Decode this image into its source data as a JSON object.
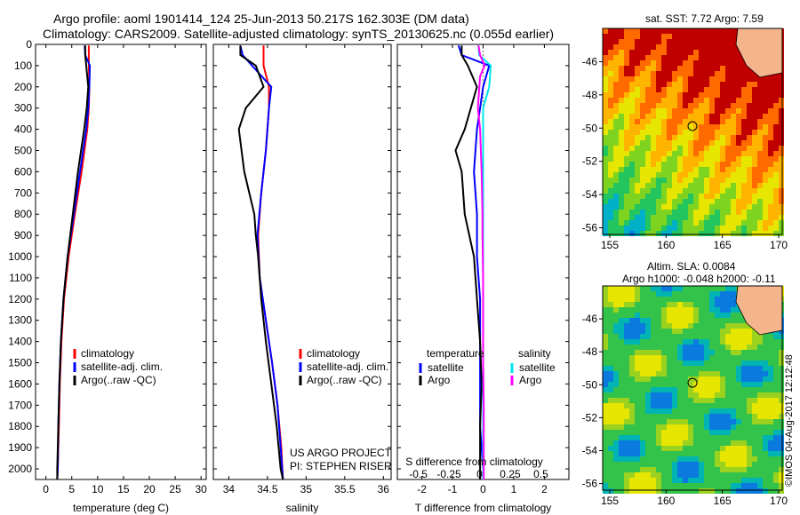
{
  "header": {
    "line1": "Argo profile: aoml 1901414_124 25-Jun-2013 50.217S 162.303E (DM data)",
    "line2": "Climatology: CARS2009. Satellite-adjusted climatology: synTS_20130625.nc (0.055d earlier)"
  },
  "colors": {
    "climatology": "#ff0000",
    "satellite": "#0000ff",
    "argo": "#000000",
    "cyan": "#00e5ee",
    "magenta": "#ff00ff"
  },
  "panels": {
    "temperature": {
      "xlabel": "temperature (deg C)",
      "xticks": [
        "0",
        "5",
        "10",
        "15",
        "20",
        "25",
        "30"
      ]
    },
    "salinity": {
      "xlabel": "salinity",
      "xticks": [
        "34",
        "34.5",
        "35",
        "35.5",
        "36"
      ]
    },
    "difference": {
      "xlabel": "T difference from climatology",
      "xticks": [
        "-2",
        "-1",
        "0",
        "1",
        "2"
      ],
      "s_label": "S difference from climatology",
      "s_ticks": [
        "-0.5",
        "-0.25",
        "0",
        "0.25",
        "0.5"
      ]
    },
    "legend_t": [
      "climatology",
      "satellite-adj. clim.",
      "Argo(..raw -QC)"
    ],
    "legend_s": [
      "climatology",
      "satellite-adj. clim.",
      "Argo(..raw -QC)"
    ],
    "legend_diff": {
      "temp_head": "temperature",
      "sal_head": "salinity",
      "sat": "satellite",
      "argo": "Argo"
    },
    "credit": [
      "US ARGO PROJECT",
      "PI: STEPHEN RISER"
    ]
  },
  "depth_ticks": [
    "0",
    "100",
    "200",
    "300",
    "400",
    "500",
    "600",
    "700",
    "800",
    "900",
    "1000",
    "1100",
    "1200",
    "1300",
    "1400",
    "1500",
    "1600",
    "1700",
    "1800",
    "1900",
    "2000"
  ],
  "maps": {
    "sst_title": "sat. SST: 7.72 Argo: 7.59",
    "sla_title1": "Altim. SLA: 0.0084",
    "sla_title2": "Argo h1000: -0.048 h2000: -0.11",
    "lat_ticks": [
      "-46",
      "-48",
      "-50",
      "-52",
      "-54",
      "-56"
    ],
    "lon_ticks": [
      "155",
      "160",
      "165",
      "170"
    ],
    "stamp": "©IMOS 04-Aug-2017 12:12:48"
  },
  "chart_data": [
    {
      "type": "line",
      "title": "",
      "xlabel": "temperature (deg C)",
      "ylabel": "",
      "xlim": [
        -2,
        31
      ],
      "ylim": [
        2050,
        0
      ],
      "series": [
        {
          "name": "climatology",
          "color": "#ff0000",
          "depth": [
            5,
            50,
            100,
            200,
            300,
            400,
            600,
            800,
            1000,
            1200,
            1400,
            1600,
            1800,
            2000,
            2050
          ],
          "values": [
            8.3,
            8.3,
            8.3,
            8.4,
            8.3,
            8.0,
            6.9,
            5.6,
            4.4,
            3.5,
            3.0,
            2.7,
            2.5,
            2.3,
            2.2
          ]
        },
        {
          "name": "satellite-adj. clim.",
          "color": "#0000ff",
          "depth": [
            5,
            50,
            100,
            200,
            300,
            400,
            600,
            800,
            1000,
            1200,
            1400,
            1600,
            1800,
            2000,
            2050
          ],
          "values": [
            7.5,
            7.6,
            8.5,
            8.4,
            8.2,
            7.8,
            6.6,
            5.4,
            4.2,
            3.4,
            2.9,
            2.6,
            2.4,
            2.3,
            2.2
          ]
        },
        {
          "name": "Argo(..raw -QC)",
          "color": "#000000",
          "depth": [
            5,
            50,
            100,
            200,
            300,
            400,
            500,
            600,
            800,
            1000,
            1200,
            1400,
            1600,
            1800,
            2000,
            2050
          ],
          "values": [
            7.6,
            7.6,
            7.8,
            8.2,
            7.9,
            7.4,
            6.8,
            6.2,
            5.2,
            4.2,
            3.4,
            2.9,
            2.6,
            2.4,
            2.2,
            2.2
          ]
        }
      ]
    },
    {
      "type": "line",
      "title": "",
      "xlabel": "salinity",
      "ylabel": "",
      "xlim": [
        33.8,
        36.1
      ],
      "ylim": [
        2050,
        0
      ],
      "series": [
        {
          "name": "climatology",
          "color": "#ff0000",
          "depth": [
            5,
            100,
            200,
            300,
            500,
            700,
            900,
            1100,
            1300,
            1500,
            1700,
            1900,
            2050
          ],
          "values": [
            34.45,
            34.45,
            34.52,
            34.52,
            34.48,
            34.42,
            34.38,
            34.4,
            34.48,
            34.56,
            34.63,
            34.68,
            34.7
          ]
        },
        {
          "name": "satellite-adj. clim.",
          "color": "#0000ff",
          "depth": [
            5,
            50,
            100,
            200,
            300,
            500,
            700,
            900,
            1100,
            1300,
            1500,
            1700,
            1900,
            2050
          ],
          "values": [
            34.15,
            34.18,
            34.3,
            34.55,
            34.52,
            34.48,
            34.42,
            34.37,
            34.4,
            34.48,
            34.56,
            34.63,
            34.67,
            34.7
          ]
        },
        {
          "name": "Argo(..raw -QC)",
          "color": "#000000",
          "depth": [
            5,
            50,
            100,
            200,
            300,
            400,
            600,
            800,
            900,
            1000,
            1200,
            1400,
            1600,
            1800,
            2000,
            2050
          ],
          "values": [
            34.15,
            34.15,
            34.35,
            34.45,
            34.22,
            34.13,
            34.2,
            34.33,
            34.35,
            34.38,
            34.42,
            34.48,
            34.55,
            34.62,
            34.67,
            34.7
          ]
        }
      ]
    },
    {
      "type": "line",
      "title": "",
      "xlabel": "T difference from climatology",
      "ylabel": "",
      "xlim": [
        -2.8,
        2.8
      ],
      "ylim": [
        2050,
        0
      ],
      "series": [
        {
          "name": "temperature satellite",
          "color": "#0000ff",
          "depth": [
            5,
            50,
            100,
            200,
            300,
            400,
            600,
            800,
            1000,
            1200,
            1400,
            1600,
            1800,
            2000,
            2050
          ],
          "values": [
            -0.8,
            -0.7,
            0.2,
            0.0,
            -0.1,
            -0.2,
            -0.3,
            -0.2,
            -0.2,
            -0.1,
            -0.1,
            -0.1,
            -0.1,
            0.0,
            0.0
          ]
        },
        {
          "name": "temperature Argo",
          "color": "#000000",
          "depth": [
            5,
            50,
            100,
            200,
            300,
            400,
            500,
            600,
            800,
            1000,
            1200,
            1400,
            1600,
            1800,
            2000,
            2050
          ],
          "values": [
            -0.7,
            -0.7,
            -0.5,
            -0.2,
            -0.4,
            -0.6,
            -0.9,
            -0.7,
            -0.6,
            -0.3,
            -0.2,
            -0.1,
            -0.05,
            -0.1,
            -0.1,
            -0.1
          ]
        },
        {
          "name": "salinity satellite",
          "color": "#00e5ee",
          "depth": [
            5,
            50,
            100,
            200,
            300,
            500,
            700,
            900,
            1100,
            1300,
            1500,
            1700,
            1900,
            2050
          ],
          "values": [
            -0.15,
            -0.13,
            0.25,
            0.2,
            0.0,
            0.0,
            0.0,
            0.0,
            0.0,
            0.0,
            0.0,
            0.0,
            0.0,
            0.0
          ]
        },
        {
          "name": "salinity Argo",
          "color": "#ff00ff",
          "depth": [
            5,
            50,
            100,
            150,
            300,
            400,
            600,
            800,
            900,
            1100,
            1300,
            1500,
            1700,
            1900,
            2050
          ],
          "values": [
            -0.15,
            -0.1,
            0.05,
            -0.1,
            -0.17,
            -0.1,
            -0.05,
            -0.02,
            -0.02,
            0.0,
            0.0,
            0.0,
            0.02,
            0.02,
            0.02
          ]
        }
      ]
    }
  ]
}
